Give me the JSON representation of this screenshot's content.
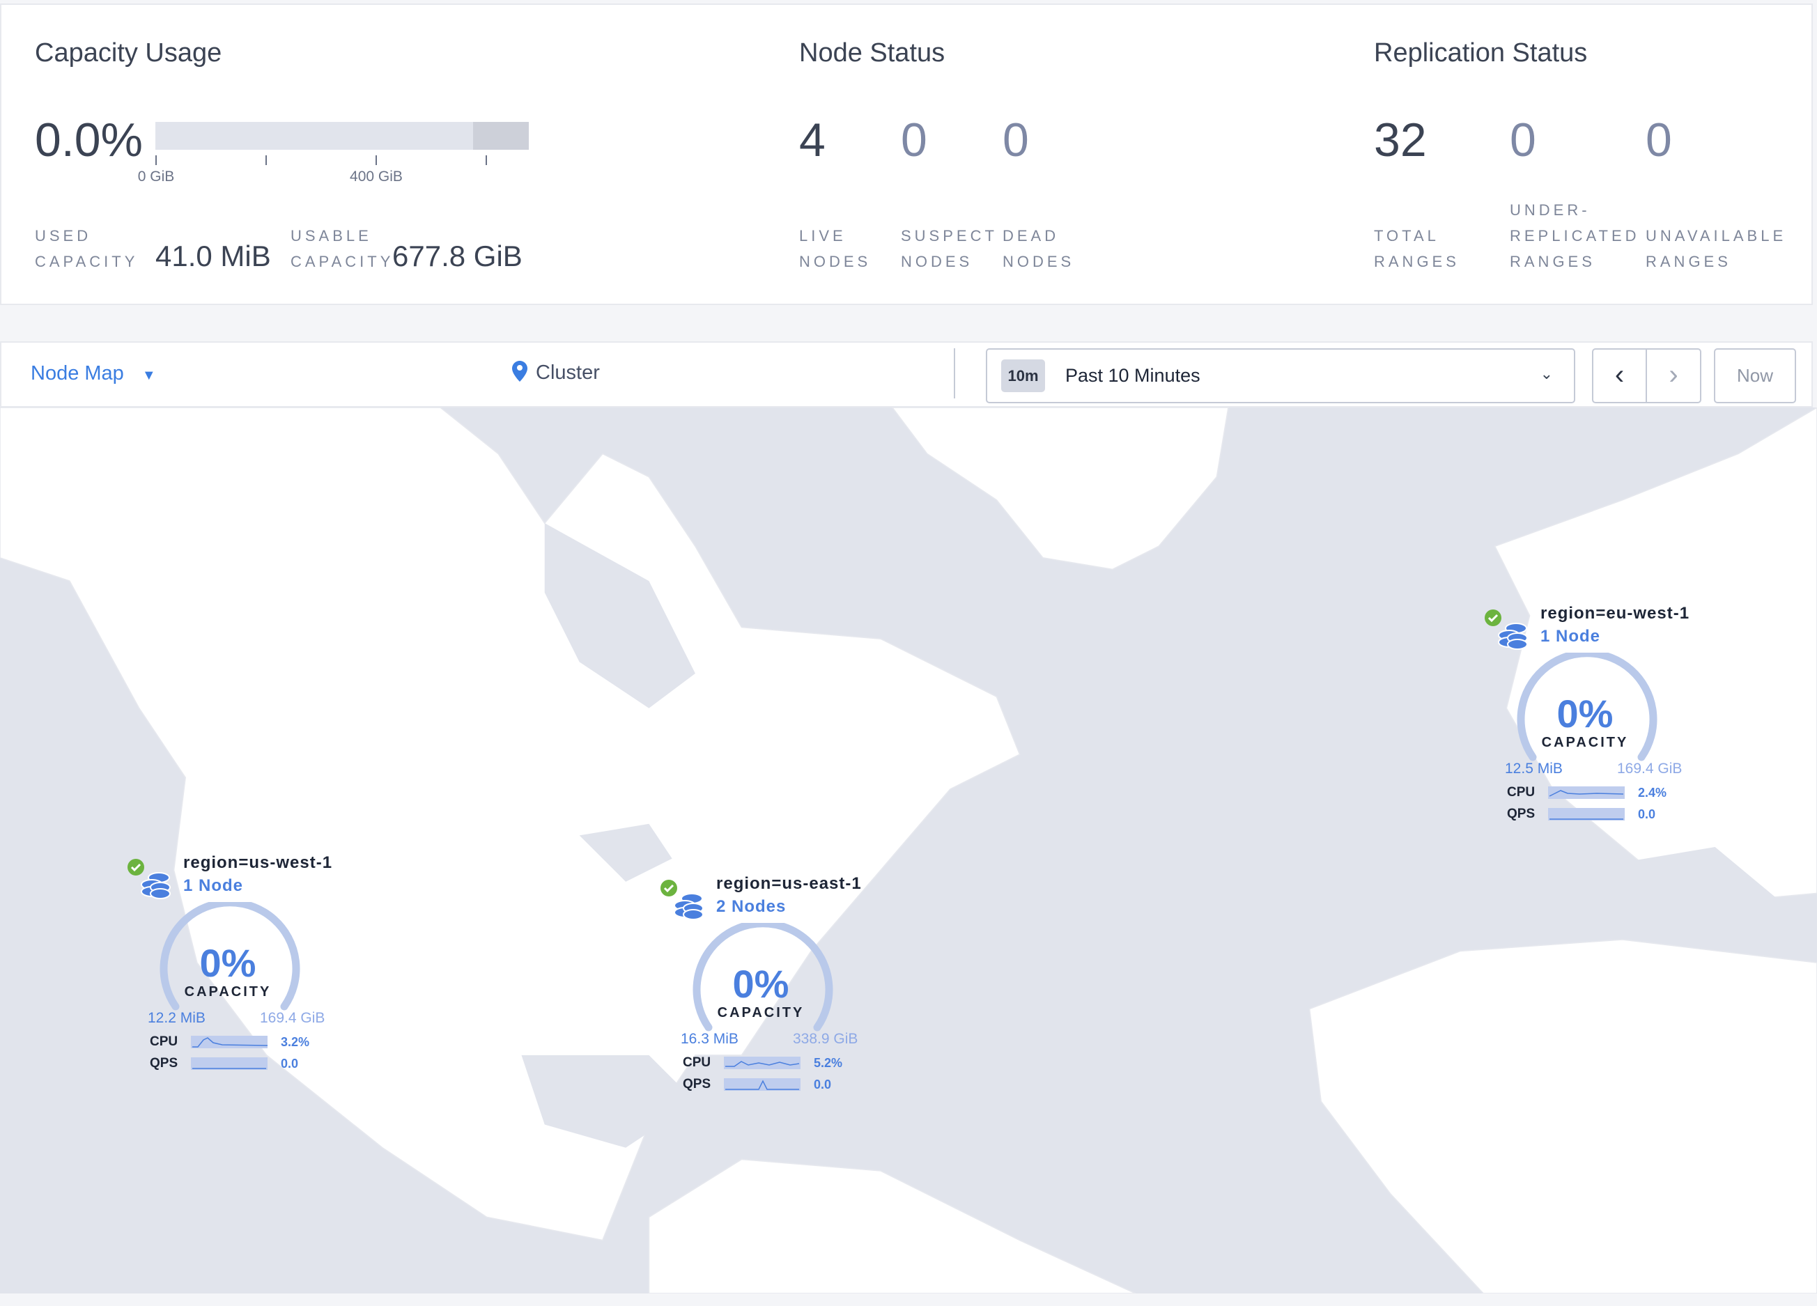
{
  "capacity": {
    "title": "Capacity Usage",
    "percent": "0.0%",
    "fraction": 0.0,
    "ticks": [
      "0 GiB",
      "400 GiB"
    ],
    "used_label_1": "USED",
    "used_label_2": "CAPACITY",
    "used_value": "41.0 MiB",
    "usable_label_1": "USABLE",
    "usable_label_2": "CAPACITY",
    "usable_value": "677.8 GiB"
  },
  "node_status": {
    "title": "Node Status",
    "stats": [
      {
        "value": "4",
        "l1": "LIVE",
        "l2": "NODES"
      },
      {
        "value": "0",
        "l1": "SUSPECT",
        "l2": "NODES"
      },
      {
        "value": "0",
        "l1": "DEAD",
        "l2": "NODES"
      }
    ]
  },
  "replication": {
    "title": "Replication Status",
    "stats": [
      {
        "value": "32",
        "l0": "",
        "l1": "TOTAL",
        "l2": "RANGES"
      },
      {
        "value": "0",
        "l0": "UNDER-",
        "l1": "REPLICATED",
        "l2": "RANGES"
      },
      {
        "value": "0",
        "l0": "",
        "l1": "UNAVAILABLE",
        "l2": "RANGES"
      }
    ]
  },
  "toolbar": {
    "view": "Node Map",
    "breadcrumb": "Cluster",
    "time_badge": "10m",
    "time_range": "Past 10 Minutes",
    "now": "Now"
  },
  "colors": {
    "accent": "#4a7fde",
    "ok": "#6cb33f",
    "ocean": "#e1e4ec",
    "land": "#ffffff"
  },
  "regions": [
    {
      "name": "region=us-west-1",
      "nodes": "1 Node",
      "percent": "0%",
      "capacity_label": "CAPACITY",
      "used": "12.2 MiB",
      "total": "169.4 GiB",
      "cpu_label": "CPU",
      "cpu": "3.2%",
      "qps_label": "QPS",
      "qps": "0.0",
      "status": "healthy"
    },
    {
      "name": "region=us-east-1",
      "nodes": "2 Nodes",
      "percent": "0%",
      "capacity_label": "CAPACITY",
      "used": "16.3 MiB",
      "total": "338.9 GiB",
      "cpu_label": "CPU",
      "cpu": "5.2%",
      "qps_label": "QPS",
      "qps": "0.0",
      "status": "healthy"
    },
    {
      "name": "region=eu-west-1",
      "nodes": "1 Node",
      "percent": "0%",
      "capacity_label": "CAPACITY",
      "used": "12.5 MiB",
      "total": "169.4 GiB",
      "cpu_label": "CPU",
      "cpu": "2.4%",
      "qps_label": "QPS",
      "qps": "0.0",
      "status": "healthy"
    }
  ]
}
